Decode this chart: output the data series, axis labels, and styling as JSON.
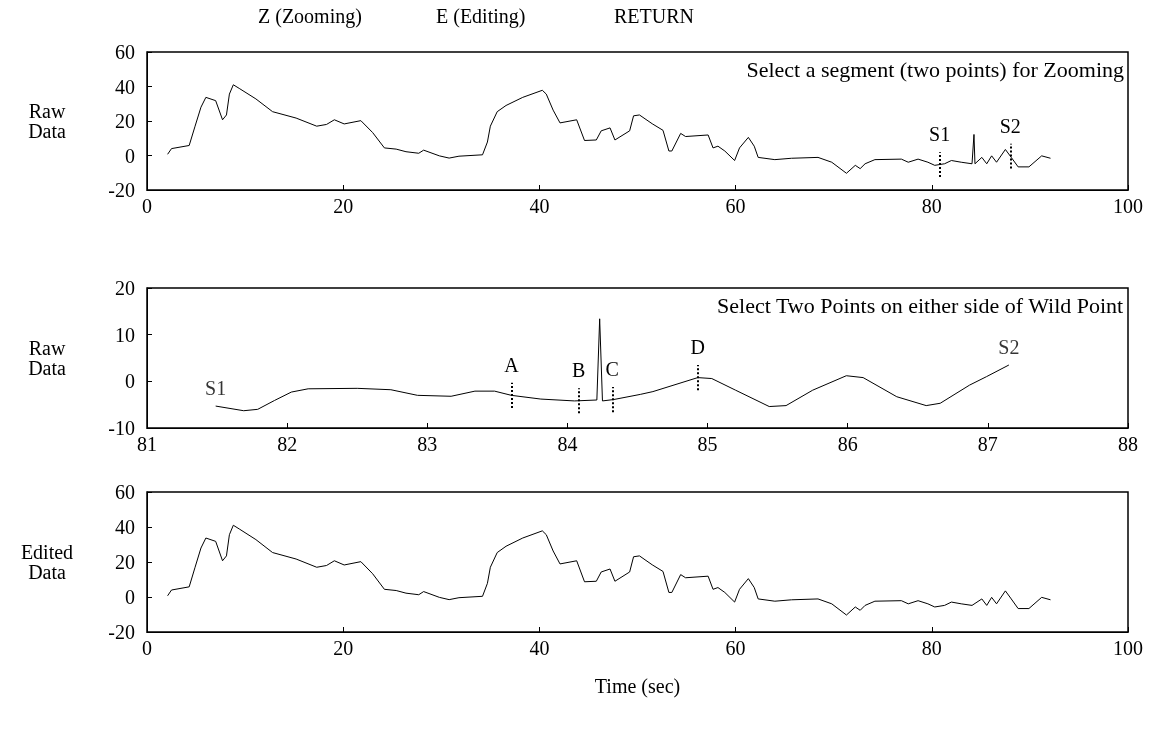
{
  "chart_data": [
    {
      "type": "line",
      "ylabel": "Raw Data",
      "xlim": [
        0,
        100
      ],
      "xticks": [
        0,
        20,
        40,
        60,
        80,
        100
      ],
      "ylim": [
        -20,
        60
      ],
      "yticks": [
        -20,
        0,
        20,
        40,
        60
      ],
      "grid": false,
      "marker": "none",
      "line_style": "solid",
      "annotations": [
        "Z (Zooming)",
        "E (Editing)",
        "RETURN",
        "Select a segment (two points) for Zooming"
      ],
      "ref_lines": [
        {
          "axis": "x",
          "value": 80.8,
          "label": "S1",
          "line_style": "dotted"
        },
        {
          "axis": "x",
          "value": 88,
          "label": "S2",
          "line_style": "dotted"
        }
      ],
      "series": [
        {
          "color": "#000000",
          "x": [
            2.1,
            2.5,
            4.3,
            4.9,
            5.5,
            6.0,
            7.0,
            7.7,
            8.1,
            8.4,
            8.8,
            9.4,
            11.1,
            12.8,
            15.2,
            17.3,
            18.3,
            19.1,
            20.1,
            21.8,
            23.0,
            24.2,
            25.4,
            26.4,
            27.7,
            28.2,
            29.8,
            30.8,
            31.8,
            34.2,
            34.7,
            35.0,
            35.7,
            36.6,
            38.3,
            40.3,
            40.7,
            41.4,
            42.1,
            43.8,
            44.6,
            45.8,
            46.3,
            47.2,
            47.7,
            49.2,
            49.6,
            50.2,
            51.5,
            52.6,
            53.2,
            53.5,
            54.4,
            54.9,
            57.2,
            57.7,
            58.2,
            58.9,
            59.9,
            60.4,
            61.3,
            61.9,
            62.3,
            64.0,
            65.7,
            68.4,
            69.8,
            71.3,
            72.2,
            72.7,
            73.2,
            74.2,
            76.9,
            77.6,
            78.6,
            79.6,
            80.3,
            81.3,
            82.0,
            83.0,
            84.1,
            84.3,
            84.4,
            85.1,
            85.6,
            86.1,
            86.6,
            87.5,
            88.1,
            88.8,
            89.9,
            91.2,
            92.1
          ],
          "values": [
            0.7,
            4,
            5.8,
            17,
            28,
            33.7,
            31.8,
            20.7,
            23.5,
            35.6,
            41,
            38.9,
            32.8,
            25.4,
            21.7,
            17,
            18,
            20.7,
            18.3,
            20.2,
            13.3,
            4.4,
            3.7,
            2.2,
            1.3,
            3.1,
            -0.2,
            -1.5,
            -0.4,
            0.4,
            7.8,
            17,
            25.4,
            29,
            33.7,
            37.8,
            35.6,
            26.3,
            18.9,
            20.7,
            8.7,
            9,
            14.3,
            16,
            9,
            14.3,
            23,
            23.5,
            18.4,
            14.6,
            2.6,
            2.6,
            12.8,
            11,
            11.9,
            4.4,
            5.4,
            2.6,
            -2.9,
            4.4,
            10.5,
            5.4,
            -1.1,
            -2.4,
            -1.6,
            -1.1,
            -3.9,
            -10.3,
            -5.7,
            -7.6,
            -4.8,
            -2.4,
            -2.1,
            -3.9,
            -2.1,
            -3.9,
            -5.7,
            -4.8,
            -2.9,
            -3.9,
            -4.8,
            12.2,
            -4.8,
            -1.1,
            -4.8,
            -0.2,
            -3.9,
            3.5,
            -1.1,
            -6.6,
            -6.6,
            -0.2,
            -1.6
          ]
        }
      ]
    },
    {
      "type": "line",
      "ylabel": "Raw Data",
      "xlim": [
        81,
        88
      ],
      "xticks": [
        81,
        82,
        83,
        84,
        85,
        86,
        87,
        88
      ],
      "ylim": [
        -10,
        20
      ],
      "yticks": [
        -10,
        0,
        10,
        20
      ],
      "grid": false,
      "marker": "none",
      "line_style": "solid",
      "annotations": [
        "Select Two Points on either side of Wild Point",
        {
          "text": "S1",
          "x": 81.49,
          "y": -5.3
        },
        {
          "text": "S2",
          "x": 87.15,
          "y": 3.5
        }
      ],
      "ref_lines": [
        {
          "axis": "x",
          "value": 83.6,
          "label": "A",
          "line_style": "dotted"
        },
        {
          "axis": "x",
          "value": 84.08,
          "label": "B",
          "line_style": "dotted"
        },
        {
          "axis": "x",
          "value": 84.32,
          "label": "C",
          "line_style": "dotted"
        },
        {
          "axis": "x",
          "value": 84.93,
          "label": "D",
          "line_style": "dotted"
        }
      ],
      "series": [
        {
          "color": "#000000",
          "x": [
            81.49,
            81.69,
            81.79,
            81.91,
            82.03,
            82.15,
            82.5,
            82.74,
            82.93,
            83.17,
            83.34,
            83.48,
            83.6,
            83.81,
            84.05,
            84.21,
            84.23,
            84.25,
            84.33,
            84.52,
            84.61,
            84.93,
            85.03,
            85.2,
            85.44,
            85.56,
            85.75,
            85.99,
            86.11,
            86.35,
            86.56,
            86.66,
            86.87,
            86.99,
            87.15
          ],
          "values": [
            -5.3,
            -6.3,
            -6.0,
            -4.1,
            -2.3,
            -1.6,
            -1.5,
            -1.8,
            -3.0,
            -3.2,
            -2.1,
            -2.1,
            -3.0,
            -3.8,
            -4.2,
            -4.0,
            13.4,
            -4.2,
            -3.9,
            -2.8,
            -2.2,
            0.8,
            0.6,
            -1.9,
            -5.4,
            -5.2,
            -1.9,
            1.2,
            0.8,
            -3.3,
            -5.2,
            -4.7,
            -0.8,
            1.0,
            3.5
          ]
        }
      ]
    },
    {
      "type": "line",
      "ylabel": "Edited Data",
      "xlabel": "Time (sec)",
      "xlim": [
        0,
        100
      ],
      "xticks": [
        0,
        20,
        40,
        60,
        80,
        100
      ],
      "ylim": [
        -20,
        60
      ],
      "yticks": [
        -20,
        0,
        20,
        40,
        60
      ],
      "grid": false,
      "marker": "none",
      "line_style": "solid",
      "series": [
        {
          "color": "#000000",
          "x": [
            2.1,
            2.5,
            4.3,
            4.9,
            5.5,
            6.0,
            7.0,
            7.7,
            8.1,
            8.4,
            8.8,
            9.4,
            11.1,
            12.8,
            15.2,
            17.3,
            18.3,
            19.1,
            20.1,
            21.8,
            23.0,
            24.2,
            25.4,
            26.4,
            27.7,
            28.2,
            29.8,
            30.8,
            31.8,
            34.2,
            34.7,
            35.0,
            35.7,
            36.6,
            38.3,
            40.3,
            40.7,
            41.4,
            42.1,
            43.8,
            44.6,
            45.8,
            46.3,
            47.2,
            47.7,
            49.2,
            49.6,
            50.2,
            51.5,
            52.6,
            53.2,
            53.5,
            54.4,
            54.9,
            57.2,
            57.7,
            58.2,
            58.9,
            59.9,
            60.4,
            61.3,
            61.9,
            62.3,
            64.0,
            65.7,
            68.4,
            69.8,
            71.3,
            72.2,
            72.7,
            73.2,
            74.2,
            76.9,
            77.6,
            78.6,
            79.6,
            80.3,
            81.3,
            82.0,
            83.0,
            84.1,
            85.1,
            85.6,
            86.1,
            86.6,
            87.5,
            88.1,
            88.8,
            89.9,
            91.2,
            92.1
          ],
          "values": [
            0.7,
            4,
            5.8,
            17,
            28,
            33.7,
            31.8,
            20.7,
            23.5,
            35.6,
            41,
            38.9,
            32.8,
            25.4,
            21.7,
            17,
            18,
            20.7,
            18.3,
            20.2,
            13.3,
            4.4,
            3.7,
            2.2,
            1.3,
            3.1,
            -0.2,
            -1.5,
            -0.4,
            0.4,
            7.8,
            17,
            25.4,
            29,
            33.7,
            37.8,
            35.6,
            26.3,
            18.9,
            20.7,
            8.7,
            9,
            14.3,
            16,
            9,
            14.3,
            23,
            23.5,
            18.4,
            14.6,
            2.6,
            2.6,
            12.8,
            11,
            11.9,
            4.4,
            5.4,
            2.6,
            -2.9,
            4.4,
            10.5,
            5.4,
            -1.1,
            -2.4,
            -1.6,
            -1.1,
            -3.9,
            -10.3,
            -5.7,
            -7.6,
            -4.8,
            -2.4,
            -2.1,
            -3.9,
            -2.1,
            -3.9,
            -5.7,
            -4.8,
            -2.9,
            -3.9,
            -4.8,
            -1.1,
            -4.8,
            -0.2,
            -3.9,
            3.5,
            -1.1,
            -6.6,
            -6.6,
            -0.2,
            -1.6
          ]
        }
      ]
    }
  ]
}
